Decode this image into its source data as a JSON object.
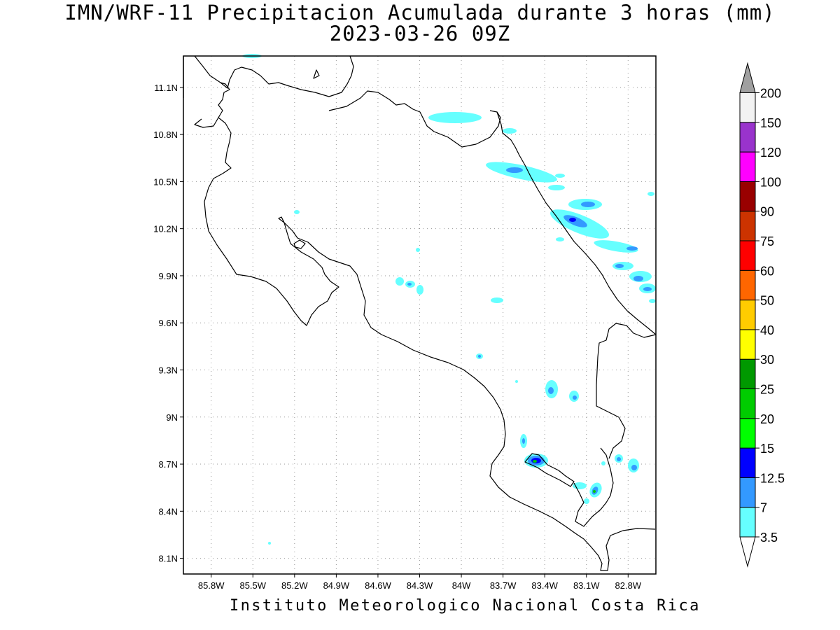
{
  "title": {
    "line1": "IMN/WRF-11 Precipitacion Acumulada durante 3 horas (mm)",
    "line2": "2023-03-26 09Z"
  },
  "footer": "Instituto Meteorologico Nacional Costa Rica",
  "map": {
    "lon_range": [
      -86.0,
      -82.6
    ],
    "lat_range": [
      8.0,
      11.3
    ],
    "lon_ticks": [
      {
        "value": -85.8,
        "label": "85.8W"
      },
      {
        "value": -85.5,
        "label": "85.5W"
      },
      {
        "value": -85.2,
        "label": "85.2W"
      },
      {
        "value": -84.9,
        "label": "84.9W"
      },
      {
        "value": -84.6,
        "label": "84.6W"
      },
      {
        "value": -84.3,
        "label": "84.3W"
      },
      {
        "value": -84.0,
        "label": "84W"
      },
      {
        "value": -83.7,
        "label": "83.7W"
      },
      {
        "value": -83.4,
        "label": "83.4W"
      },
      {
        "value": -83.1,
        "label": "83.1W"
      },
      {
        "value": -82.8,
        "label": "82.8W"
      }
    ],
    "lat_ticks": [
      {
        "value": 8.1,
        "label": "8.1N"
      },
      {
        "value": 8.4,
        "label": "8.4N"
      },
      {
        "value": 8.7,
        "label": "8.7N"
      },
      {
        "value": 9.0,
        "label": "9N"
      },
      {
        "value": 9.3,
        "label": "9.3N"
      },
      {
        "value": 9.6,
        "label": "9.6N"
      },
      {
        "value": 9.9,
        "label": "9.9N"
      },
      {
        "value": 10.2,
        "label": "10.2N"
      },
      {
        "value": 10.5,
        "label": "10.5N"
      },
      {
        "value": 10.8,
        "label": "10.8N"
      },
      {
        "value": 11.1,
        "label": "11.1N"
      }
    ],
    "grid": "dotted",
    "colors": {
      "precip_light": "#66ffff",
      "precip_mid": "#3399ff",
      "precip_heavy": "#0000ff",
      "precip_green": "#00cc00",
      "coast": "#000000"
    }
  },
  "colorbar": {
    "levels": [
      "3.5",
      "7",
      "12.5",
      "15",
      "20",
      "25",
      "30",
      "40",
      "50",
      "60",
      "75",
      "90",
      "100",
      "120",
      "150",
      "200"
    ],
    "colors": [
      "#66ffff",
      "#3399ff",
      "#0000ff",
      "#00ff00",
      "#00cc00",
      "#009900",
      "#ffff00",
      "#ffcc00",
      "#ff6600",
      "#ff0000",
      "#cc3300",
      "#990000",
      "#ff00ff",
      "#9933cc",
      "#f2f2f2"
    ],
    "upper_arrow_color": "#a0a0a0",
    "lower_arrow_color": "#ffffff"
  }
}
